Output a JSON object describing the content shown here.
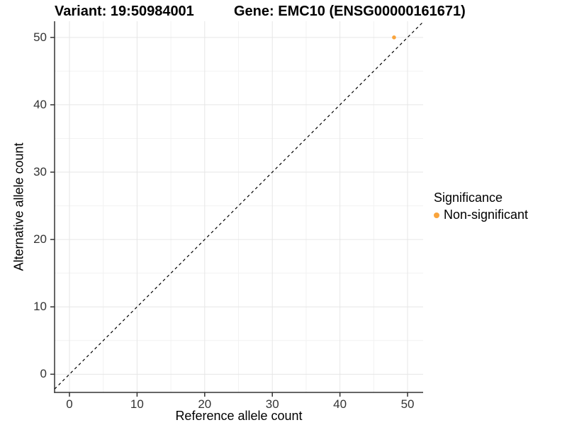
{
  "titles": {
    "variant": "Variant: 19:50984001",
    "gene": "Gene: EMC10 (ENSG00000161671)"
  },
  "legend": {
    "title": "Significance",
    "items": [
      {
        "label": "Non-significant",
        "color": "#F9A43C"
      }
    ]
  },
  "style": {
    "background": "#ffffff",
    "axis_color": "#333333",
    "grid_major_color": "#e6e6e6",
    "grid_minor_color": "#f2f2f2",
    "tick_label_color": "#333333",
    "identity_line_color": "#000000",
    "point_color": "#F9A43C"
  },
  "chart_data": {
    "type": "scatter",
    "title_left": "Variant: 19:50984001",
    "title_right": "Gene: EMC10 (ENSG00000161671)",
    "xlabel": "Reference allele count",
    "ylabel": "Alternative allele count",
    "xlim": [
      -2.2,
      52.3
    ],
    "ylim": [
      -2.7,
      52.4
    ],
    "xticks": [
      0,
      10,
      20,
      30,
      40,
      50
    ],
    "yticks": [
      0,
      10,
      20,
      30,
      40,
      50
    ],
    "x_minor_ticks": [
      5,
      15,
      25,
      35,
      45
    ],
    "y_minor_ticks": [
      5,
      15,
      25,
      35,
      45
    ],
    "grid": "major+minor",
    "legend_position": "right",
    "legend_title": "Significance",
    "series": [
      {
        "name": "Non-significant",
        "color": "#F9A43C",
        "point_radius": 2.8,
        "points": [
          {
            "x": 48,
            "y": 50
          }
        ]
      }
    ],
    "reference_line": {
      "type": "identity",
      "equation": "y = x",
      "style": "dashed",
      "color": "#000000"
    }
  }
}
